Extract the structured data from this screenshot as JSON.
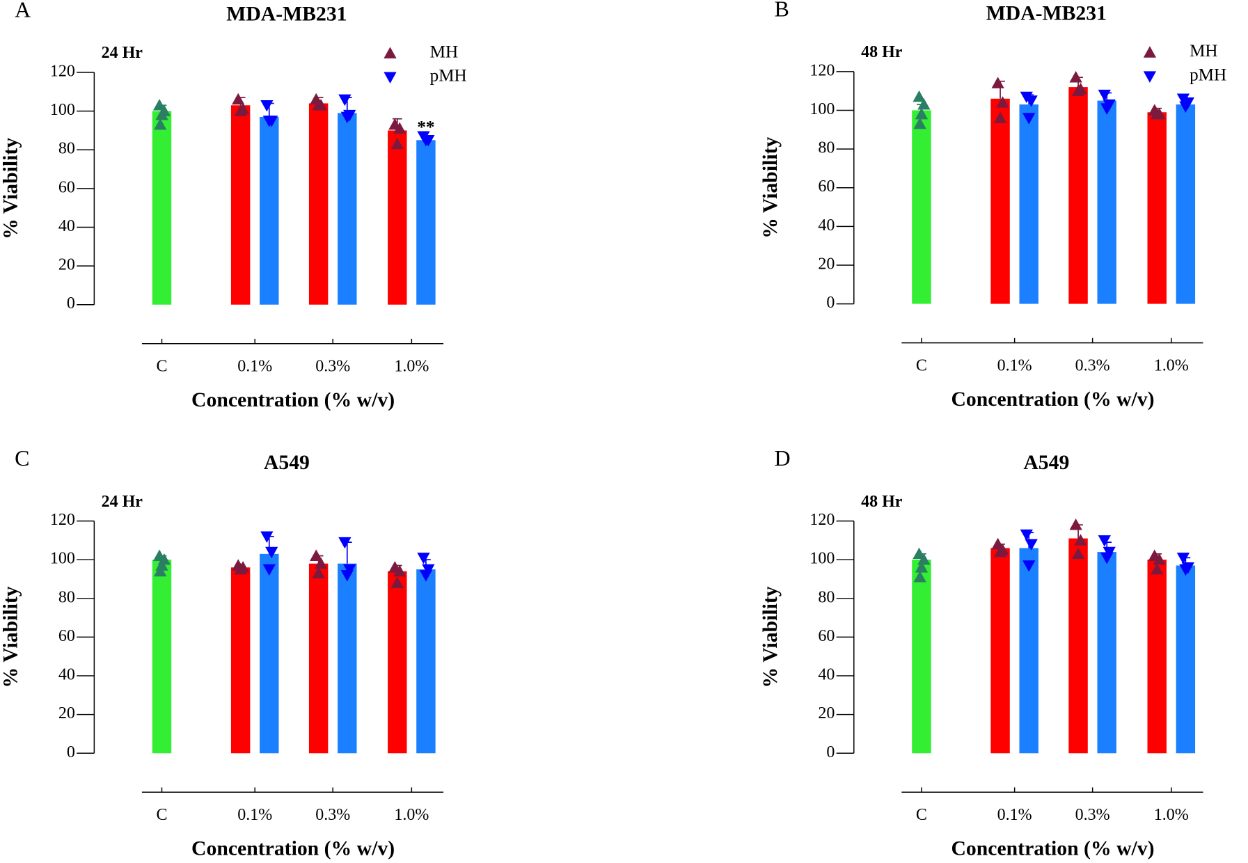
{
  "chart_data": [
    {
      "type": "bar",
      "panel": "A",
      "title": "MDA-MB231",
      "subtitle": "24 Hr",
      "xlabel": "Concentration (% w/v)",
      "ylabel": "% Viability",
      "categories": [
        "C",
        "0.1%",
        "0.3%",
        "1.0%"
      ],
      "ylim": [
        0,
        120
      ],
      "yticks": [
        0,
        20,
        40,
        60,
        80,
        100,
        120
      ],
      "legend": "top-right",
      "control": {
        "color": "#33ee33",
        "marker_color": "#2a7f62",
        "value": 100,
        "error": 3,
        "points": [
          103,
          100,
          98,
          93
        ]
      },
      "series": [
        {
          "name": "MH",
          "color": "#ff0000",
          "marker_color": "#7b1a3e",
          "values": [
            null,
            103,
            104,
            90
          ],
          "errors": [
            null,
            4,
            3,
            6
          ],
          "points": [
            null,
            [
              106,
              101,
              100
            ],
            [
              106,
              103,
              103
            ],
            [
              93,
              91,
              83
            ]
          ]
        },
        {
          "name": "pMH",
          "color": "#1a80ff",
          "marker_color": "#0000ff",
          "values": [
            null,
            97,
            99,
            85
          ],
          "errors": [
            null,
            7,
            8,
            1
          ],
          "points": [
            null,
            [
              103,
              95,
              95
            ],
            [
              106,
              98,
              97
            ],
            [
              87,
              85,
              85
            ]
          ]
        }
      ],
      "annotations": [
        {
          "text": "**",
          "series": 1,
          "category": 3
        }
      ]
    },
    {
      "type": "bar",
      "panel": "B",
      "title": "MDA-MB231",
      "subtitle": "48 Hr",
      "xlabel": "Concentration (% w/v)",
      "ylabel": "% Viability",
      "categories": [
        "C",
        "0.1%",
        "0.3%",
        "1.0%"
      ],
      "ylim": [
        0,
        120
      ],
      "yticks": [
        0,
        20,
        40,
        60,
        80,
        100,
        120
      ],
      "legend": "top-right",
      "control": {
        "color": "#33ee33",
        "marker_color": "#2a7f62",
        "value": 100,
        "error": 3,
        "points": [
          107,
          103,
          98,
          93
        ]
      },
      "series": [
        {
          "name": "MH",
          "color": "#ff0000",
          "marker_color": "#7b1a3e",
          "values": [
            null,
            106,
            112,
            99
          ],
          "errors": [
            null,
            9,
            5,
            2
          ],
          "points": [
            null,
            [
              114,
              104,
              96
            ],
            [
              117,
              111,
              110
            ],
            [
              100,
              98,
              98
            ]
          ]
        },
        {
          "name": "pMH",
          "color": "#1a80ff",
          "marker_color": "#0000ff",
          "values": [
            null,
            103,
            105,
            103
          ],
          "errors": [
            null,
            5,
            4,
            3
          ],
          "points": [
            null,
            [
              107,
              105,
              96
            ],
            [
              108,
              103,
              101
            ],
            [
              106,
              104,
              102
            ]
          ]
        }
      ]
    },
    {
      "type": "bar",
      "panel": "C",
      "title": "A549",
      "subtitle": "24 Hr",
      "xlabel": "Concentration (% w/v)",
      "ylabel": "% Viability",
      "categories": [
        "C",
        "0.1%",
        "0.3%",
        "1.0%"
      ],
      "ylim": [
        0,
        120
      ],
      "yticks": [
        0,
        20,
        40,
        60,
        80,
        100,
        120
      ],
      "control": {
        "color": "#33ee33",
        "marker_color": "#2a7f62",
        "value": 100,
        "error": 2,
        "points": [
          102,
          100,
          97,
          94
        ]
      },
      "series": [
        {
          "name": "MH",
          "color": "#ff0000",
          "marker_color": "#7b1a3e",
          "values": [
            null,
            96,
            98,
            94
          ],
          "errors": [
            null,
            1,
            4,
            3
          ],
          "points": [
            null,
            [
              97,
              96,
              95
            ],
            [
              102,
              98,
              93
            ],
            [
              96,
              94,
              88
            ]
          ]
        },
        {
          "name": "pMH",
          "color": "#1a80ff",
          "marker_color": "#0000ff",
          "values": [
            null,
            103,
            98,
            95
          ],
          "errors": [
            null,
            9,
            11,
            5
          ],
          "points": [
            null,
            [
              112,
              104,
              95
            ],
            [
              109,
              95,
              92
            ],
            [
              101,
              95,
              92
            ]
          ]
        }
      ]
    },
    {
      "type": "bar",
      "panel": "D",
      "title": "A549",
      "subtitle": "48 Hr",
      "xlabel": "Concentration (% w/v)",
      "ylabel": "% Viability",
      "categories": [
        "C",
        "0.1%",
        "0.3%",
        "1.0%"
      ],
      "ylim": [
        0,
        120
      ],
      "yticks": [
        0,
        20,
        40,
        60,
        80,
        100,
        120
      ],
      "control": {
        "color": "#33ee33",
        "marker_color": "#2a7f62",
        "value": 100,
        "error": 3,
        "points": [
          103,
          100,
          96,
          91
        ]
      },
      "series": [
        {
          "name": "MH",
          "color": "#ff0000",
          "marker_color": "#7b1a3e",
          "values": [
            null,
            106,
            111,
            100
          ],
          "errors": [
            null,
            2,
            7,
            3
          ],
          "points": [
            null,
            [
              108,
              105,
              104
            ],
            [
              118,
              110,
              103
            ],
            [
              102,
              100,
              95
            ]
          ]
        },
        {
          "name": "pMH",
          "color": "#1a80ff",
          "marker_color": "#0000ff",
          "values": [
            null,
            106,
            104,
            97
          ],
          "errors": [
            null,
            8,
            5,
            4
          ],
          "points": [
            null,
            [
              113,
              108,
              97
            ],
            [
              110,
              104,
              101
            ],
            [
              101,
              96,
              95
            ]
          ]
        }
      ]
    }
  ]
}
